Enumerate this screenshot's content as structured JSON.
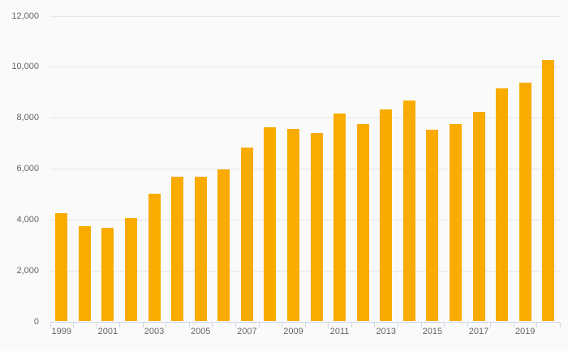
{
  "chart_data": {
    "type": "bar",
    "title": "",
    "xlabel": "",
    "ylabel": "",
    "legend": "none",
    "grid": "horizontal",
    "categories": [
      "1999",
      "2000",
      "2001",
      "2002",
      "2003",
      "2004",
      "2005",
      "2006",
      "2007",
      "2008",
      "2009",
      "2010",
      "2011",
      "2012",
      "2013",
      "2014",
      "2015",
      "2016",
      "2017",
      "2018",
      "2019",
      "2020"
    ],
    "values": [
      4260,
      3740,
      3680,
      4060,
      5000,
      5680,
      5680,
      5970,
      6830,
      7620,
      7560,
      7400,
      8160,
      7750,
      8320,
      8670,
      7530,
      7740,
      8230,
      9150,
      9370,
      10250
    ],
    "ylim": [
      0,
      12000
    ],
    "y_ticks": [
      {
        "value": 0,
        "label": "0"
      },
      {
        "value": 2000,
        "label": "2,000"
      },
      {
        "value": 4000,
        "label": "4,000"
      },
      {
        "value": 6000,
        "label": "6,000"
      },
      {
        "value": 8000,
        "label": "8,000"
      },
      {
        "value": 10000,
        "label": "10,000"
      },
      {
        "value": 12000,
        "label": "12,000"
      }
    ],
    "x_tick_labels": [
      "1999",
      "2001",
      "2003",
      "2005",
      "2007",
      "2009",
      "2011",
      "2013",
      "2015",
      "2017",
      "2019"
    ],
    "colors": {
      "bar": "#f9ab00",
      "background": "#fafafa",
      "gridline": "#e6e6e6",
      "axis_line": "#ccd6eb",
      "label": "#666666"
    }
  }
}
